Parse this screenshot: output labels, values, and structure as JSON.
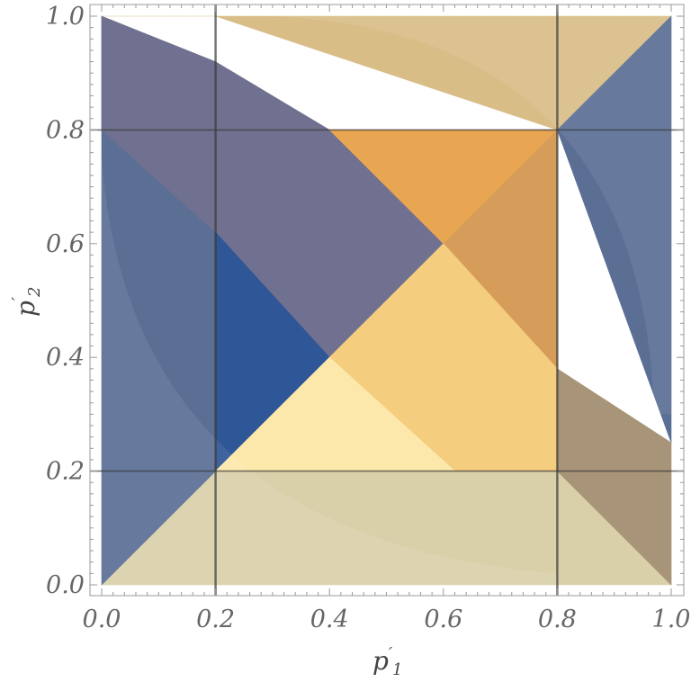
{
  "chart_data": {
    "type": "area",
    "title": "",
    "xlabel": "p",
    "xlabel_prime": "′",
    "xlabel_sub": "1",
    "ylabel": "p",
    "ylabel_prime": "′",
    "ylabel_sub": "2",
    "xlim": [
      0,
      1
    ],
    "ylim": [
      0,
      1
    ],
    "x_ticks": [
      0.0,
      0.2,
      0.4,
      0.6,
      0.8,
      1.0
    ],
    "x_tick_labels": [
      "0.0",
      "0.2",
      "0.4",
      "0.6",
      "0.8",
      "1.0"
    ],
    "y_ticks": [
      0.0,
      0.2,
      0.4,
      0.6,
      0.8,
      1.0
    ],
    "y_tick_labels": [
      "0.0",
      "0.2",
      "0.4",
      "0.6",
      "0.8",
      "1.0"
    ],
    "grid_lines": {
      "x": [
        0.2,
        0.8
      ],
      "y": [
        0.2,
        0.8
      ]
    },
    "regions": [
      {
        "name": "light-yellow-bottom",
        "color": "#d9d0aa",
        "points": [
          [
            0,
            0
          ],
          [
            1,
            0
          ],
          [
            1,
            0.2
          ],
          [
            0.2,
            0.2
          ]
        ]
      },
      {
        "name": "tan-top",
        "color": "#d8bd87",
        "points": [
          [
            0,
            1
          ],
          [
            1,
            1
          ],
          [
            0.8,
            0.8
          ],
          [
            0.2,
            1
          ]
        ]
      },
      {
        "name": "blue-left",
        "color": "#5b6f95",
        "points": [
          [
            0,
            0
          ],
          [
            0,
            1
          ],
          [
            0.2,
            0.8
          ],
          [
            0.2,
            0.2
          ]
        ]
      },
      {
        "name": "blue-right",
        "color": "#5b6f95",
        "points": [
          [
            1,
            1
          ],
          [
            1,
            0.25
          ],
          [
            0.8,
            0.8
          ]
        ]
      },
      {
        "name": "mauve-upper-band",
        "color": "#707090",
        "points": [
          [
            0,
            1
          ],
          [
            0.2,
            0.92
          ],
          [
            0.4,
            0.8
          ],
          [
            0.6,
            0.6
          ],
          [
            0.4,
            0.4
          ],
          [
            0.2,
            0.62
          ],
          [
            0,
            0.8
          ]
        ]
      },
      {
        "name": "deep-blue-triangle",
        "color": "#2f5696",
        "points": [
          [
            0.2,
            0.2
          ],
          [
            0.2,
            0.62
          ],
          [
            0.4,
            0.4
          ]
        ]
      },
      {
        "name": "bright-orange",
        "color": "#e8a552",
        "points": [
          [
            0.4,
            0.8
          ],
          [
            0.8,
            0.8
          ],
          [
            0.6,
            0.6
          ]
        ]
      },
      {
        "name": "orange-right",
        "color": "#d69c59",
        "points": [
          [
            0.6,
            0.6
          ],
          [
            0.8,
            0.8
          ],
          [
            0.8,
            0.38
          ]
        ]
      },
      {
        "name": "peach-center",
        "color": "#f5cd7f",
        "points": [
          [
            0.4,
            0.4
          ],
          [
            0.6,
            0.6
          ],
          [
            0.8,
            0.38
          ],
          [
            0.8,
            0.2
          ],
          [
            0.62,
            0.2
          ]
        ]
      },
      {
        "name": "pale-yellow-triangle",
        "color": "#fde8ab",
        "points": [
          [
            0.2,
            0.2
          ],
          [
            0.4,
            0.4
          ],
          [
            0.62,
            0.2
          ]
        ]
      },
      {
        "name": "brown-lower-right",
        "color": "#a89478",
        "points": [
          [
            0.8,
            0.38
          ],
          [
            1,
            0.25
          ],
          [
            1,
            0
          ],
          [
            0.8,
            0.2
          ]
        ]
      }
    ]
  }
}
